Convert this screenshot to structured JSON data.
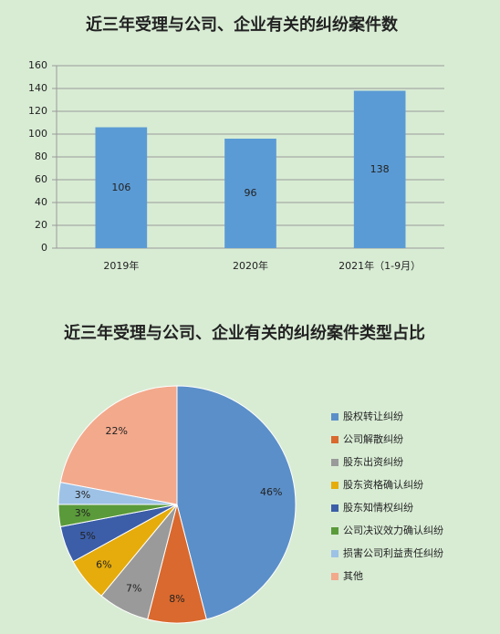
{
  "chart_data": [
    {
      "type": "bar",
      "title": "近三年受理与公司、企业有关的纠纷案件数",
      "categories": [
        "2019年",
        "2020年",
        "2021年（1-9月）"
      ],
      "values": [
        106,
        96,
        138
      ],
      "color": "#5b9bd5",
      "ylim": [
        0,
        160
      ],
      "yticks": [
        0,
        20,
        40,
        60,
        80,
        100,
        120,
        140,
        160
      ],
      "grid": true
    },
    {
      "type": "pie",
      "title": "近三年受理与公司、企业有关的纠纷案件类型占比",
      "categories": [
        "股权转让纠纷",
        "公司解散纠纷",
        "股东出资纠纷",
        "股东资格确认纠纷",
        "股东知情权纠纷",
        "公司决议效力确认纠纷",
        "损害公司利益责任纠纷",
        "其他"
      ],
      "values": [
        46,
        8,
        7,
        6,
        5,
        3,
        3,
        22
      ],
      "value_labels": [
        "46%",
        "8%",
        "7%",
        "6%",
        "5%",
        "3%",
        "3%",
        "22%"
      ],
      "colors": [
        "#5b8fc9",
        "#d9692e",
        "#9a9a9a",
        "#e5ac0c",
        "#3c5ea8",
        "#5a9a3a",
        "#9ec2e6",
        "#f3a98c"
      ],
      "legend": "right"
    }
  ]
}
